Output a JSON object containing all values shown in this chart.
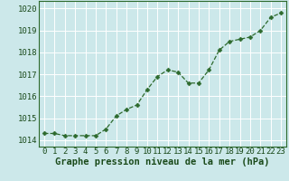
{
  "x": [
    0,
    1,
    2,
    3,
    4,
    5,
    6,
    7,
    8,
    9,
    10,
    11,
    12,
    13,
    14,
    15,
    16,
    17,
    18,
    19,
    20,
    21,
    22,
    23
  ],
  "y": [
    1014.3,
    1014.3,
    1014.2,
    1014.2,
    1014.2,
    1014.2,
    1014.5,
    1015.1,
    1015.4,
    1015.6,
    1016.3,
    1016.9,
    1017.2,
    1017.1,
    1016.6,
    1016.6,
    1017.2,
    1018.1,
    1018.5,
    1018.6,
    1018.7,
    1019.0,
    1019.6,
    1019.8
  ],
  "line_color": "#2d6a2d",
  "marker": "D",
  "marker_size": 2.5,
  "bg_color": "#cce8ea",
  "grid_color": "#ffffff",
  "xlabel": "Graphe pression niveau de la mer (hPa)",
  "xlabel_color": "#1a4a1a",
  "xlabel_fontsize": 7.5,
  "ylabel_ticks": [
    1014,
    1015,
    1016,
    1017,
    1018,
    1019,
    1020
  ],
  "ylim": [
    1013.7,
    1020.35
  ],
  "xlim": [
    -0.5,
    23.5
  ],
  "tick_fontsize": 6.5,
  "tick_color": "#1a4a1a"
}
